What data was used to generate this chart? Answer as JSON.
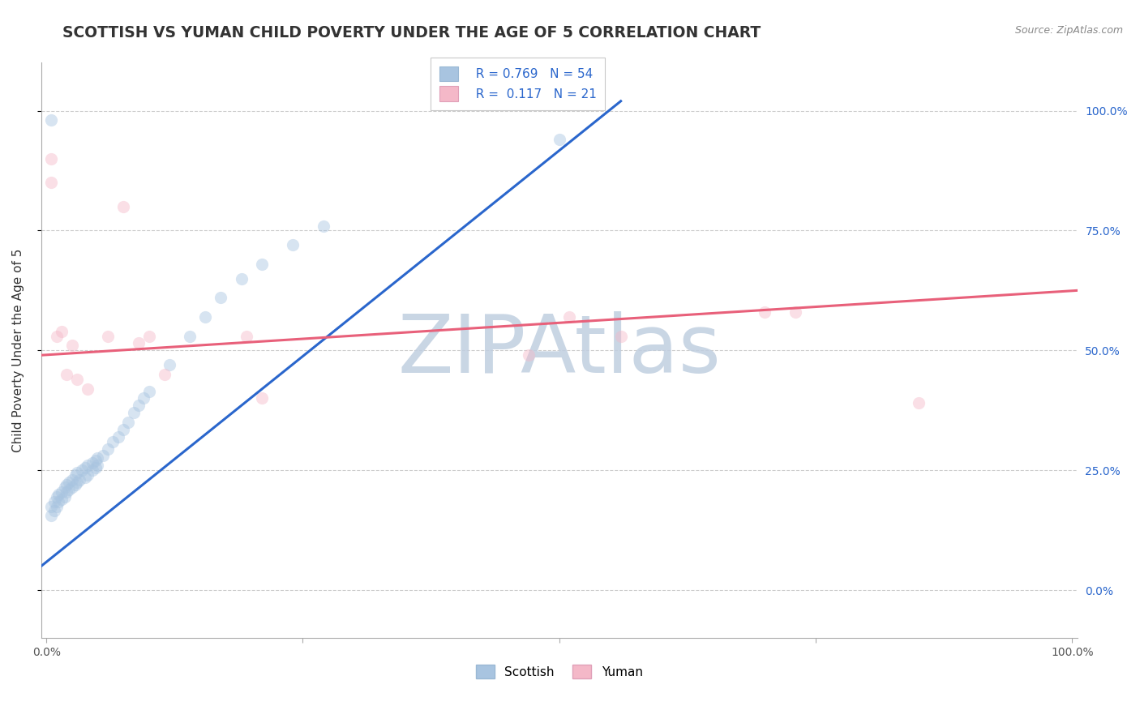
{
  "title": "SCOTTISH VS YUMAN CHILD POVERTY UNDER THE AGE OF 5 CORRELATION CHART",
  "source_text": "Source: ZipAtlas.com",
  "ylabel": "Child Poverty Under the Age of 5",
  "xlim": [
    -0.005,
    1.005
  ],
  "ylim": [
    -0.1,
    1.1
  ],
  "x_ticks": [
    0.0,
    0.25,
    0.5,
    0.75,
    1.0
  ],
  "x_tick_labels": [
    "0.0%",
    "",
    "",
    "",
    "100.0%"
  ],
  "y_ticks": [
    0.0,
    0.25,
    0.5,
    0.75,
    1.0
  ],
  "y_tick_labels_right": [
    "0.0%",
    "25.0%",
    "50.0%",
    "75.0%",
    "100.0%"
  ],
  "watermark": "ZIPAtlas",
  "legend_line1_r": "R = 0.769",
  "legend_line1_n": "N = 54",
  "legend_line2_r": "R =  0.117",
  "legend_line2_n": "N = 21",
  "scottish_color": "#a8c4e0",
  "yuman_color": "#f4b8c8",
  "scottish_line_color": "#2a66cc",
  "yuman_line_color": "#e8607a",
  "scottish_x": [
    0.005,
    0.005,
    0.008,
    0.008,
    0.01,
    0.01,
    0.012,
    0.012,
    0.015,
    0.015,
    0.018,
    0.018,
    0.02,
    0.02,
    0.022,
    0.022,
    0.025,
    0.025,
    0.028,
    0.028,
    0.03,
    0.03,
    0.032,
    0.035,
    0.038,
    0.038,
    0.04,
    0.04,
    0.045,
    0.045,
    0.048,
    0.048,
    0.05,
    0.05,
    0.055,
    0.06,
    0.065,
    0.07,
    0.075,
    0.08,
    0.085,
    0.09,
    0.095,
    0.1,
    0.12,
    0.14,
    0.155,
    0.17,
    0.19,
    0.21,
    0.24,
    0.27,
    0.5,
    0.005
  ],
  "scottish_y": [
    0.155,
    0.175,
    0.165,
    0.185,
    0.175,
    0.195,
    0.185,
    0.2,
    0.19,
    0.205,
    0.195,
    0.215,
    0.205,
    0.22,
    0.21,
    0.225,
    0.215,
    0.23,
    0.22,
    0.24,
    0.225,
    0.245,
    0.23,
    0.25,
    0.235,
    0.255,
    0.24,
    0.26,
    0.25,
    0.265,
    0.255,
    0.27,
    0.26,
    0.275,
    0.28,
    0.295,
    0.31,
    0.32,
    0.335,
    0.35,
    0.37,
    0.385,
    0.4,
    0.415,
    0.47,
    0.53,
    0.57,
    0.61,
    0.65,
    0.68,
    0.72,
    0.76,
    0.94,
    0.98
  ],
  "yuman_x": [
    0.005,
    0.005,
    0.01,
    0.015,
    0.02,
    0.025,
    0.03,
    0.04,
    0.06,
    0.075,
    0.09,
    0.1,
    0.115,
    0.195,
    0.21,
    0.47,
    0.51,
    0.56,
    0.7,
    0.73,
    0.85
  ],
  "yuman_y": [
    0.9,
    0.85,
    0.53,
    0.54,
    0.45,
    0.51,
    0.44,
    0.42,
    0.53,
    0.8,
    0.515,
    0.53,
    0.45,
    0.53,
    0.4,
    0.49,
    0.57,
    0.53,
    0.58,
    0.58,
    0.39
  ],
  "scottish_line_x": [
    -0.005,
    0.56
  ],
  "scottish_line_y": [
    0.05,
    1.02
  ],
  "yuman_line_x": [
    -0.005,
    1.005
  ],
  "yuman_line_y": [
    0.49,
    0.625
  ],
  "background_color": "#ffffff",
  "grid_color": "#cccccc",
  "title_color": "#333333",
  "title_fontsize": 13.5,
  "axis_label_fontsize": 11,
  "tick_fontsize": 10,
  "watermark_color": "#c0cfe0",
  "watermark_alpha": 0.85,
  "watermark_fontsize": 72,
  "scatter_size": 120,
  "scatter_alpha": 0.45,
  "legend_fontsize": 11,
  "right_tick_color": "#2a66cc"
}
